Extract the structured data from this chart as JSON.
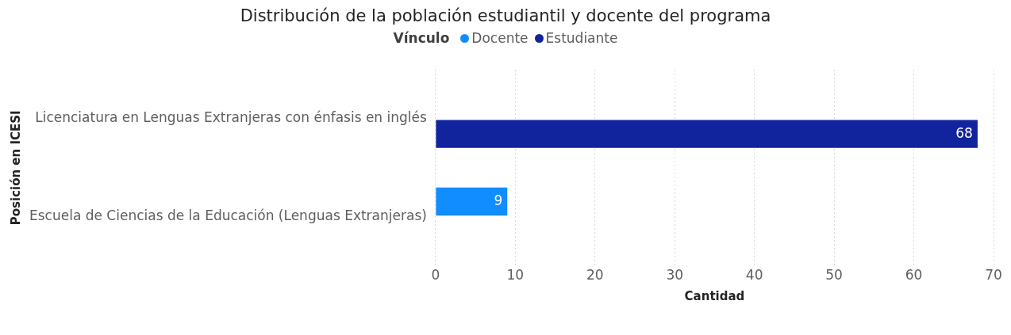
{
  "chart_data": {
    "type": "bar",
    "orientation": "horizontal",
    "title": "Distribución de la población estudiantil y docente del programa",
    "legend_title": "Vínculo",
    "legend": "top",
    "categories": [
      "Licenciatura en Lenguas Extranjeras con énfasis en inglés",
      "Escuela de Ciencias de la Educación (Lenguas Extranjeras)"
    ],
    "series": [
      {
        "name": "Docente",
        "color": "#118dff",
        "values": [
          null,
          9
        ]
      },
      {
        "name": "Estudiante",
        "color": "#12239e",
        "values": [
          68,
          null
        ]
      }
    ],
    "xlabel": "Cantidad",
    "ylabel": "Posición en ICESI",
    "xlim": [
      0,
      70
    ],
    "xticks": [
      0,
      10,
      20,
      30,
      40,
      50,
      60,
      70
    ],
    "grid": "x",
    "data_labels": true
  }
}
